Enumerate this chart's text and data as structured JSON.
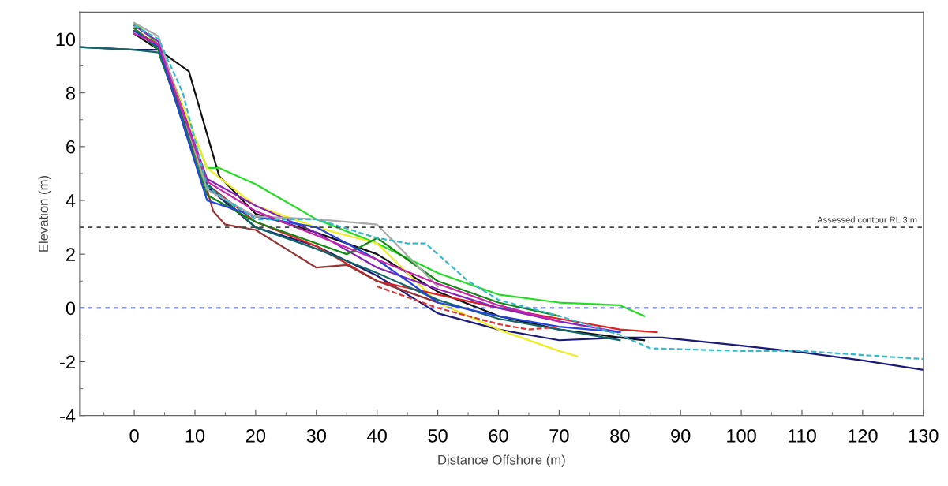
{
  "chart_data": {
    "type": "line",
    "xlabel": "Distance Offshore (m)",
    "ylabel": "Elevation (m)",
    "xlim": [
      -9,
      130
    ],
    "ylim": [
      -4,
      11
    ],
    "xticks": [
      0,
      10,
      20,
      30,
      40,
      50,
      60,
      70,
      80,
      90,
      100,
      110,
      120,
      130
    ],
    "yticks": [
      -4,
      -2,
      0,
      2,
      4,
      6,
      8,
      10
    ],
    "grid": false,
    "marker": "none",
    "line_style": "solid",
    "ref_lines": [
      {
        "axis": "y",
        "value": 3,
        "label": "Assessed contour RL 3 m",
        "color": "#444444",
        "line_style": "dashed"
      },
      {
        "axis": "y",
        "value": 0,
        "label": null,
        "color": "#3344aa",
        "line_style": "dashed"
      }
    ],
    "series": [
      {
        "color": "#1a1a7a",
        "x": [
          -9,
          0,
          4,
          12,
          20,
          30,
          40,
          50,
          60,
          70,
          80,
          87,
          100,
          110,
          120,
          130
        ],
        "values": [
          9.7,
          9.6,
          9.6,
          4.5,
          3.0,
          2.3,
          1.2,
          -0.2,
          -0.8,
          -1.2,
          -1.1,
          -1.1,
          -1.4,
          -1.65,
          -1.95,
          -2.3
        ]
      },
      {
        "color": "#33bbcc",
        "line_style": "dashed",
        "x": [
          0,
          4,
          8,
          12,
          20,
          30,
          40,
          45,
          48,
          50,
          55,
          60,
          70,
          80,
          85,
          100,
          110,
          130
        ],
        "values": [
          10.5,
          10,
          8,
          4.5,
          3.3,
          3.3,
          2.6,
          2.4,
          2.4,
          2.0,
          1.0,
          0.3,
          -0.3,
          -1.0,
          -1.5,
          -1.6,
          -1.6,
          -1.9
        ]
      },
      {
        "color": "#111111",
        "x": [
          0,
          4,
          9,
          14,
          20,
          30,
          40,
          50,
          60,
          70,
          80,
          84
        ],
        "values": [
          10.2,
          9.6,
          8.8,
          4.9,
          3.5,
          2.8,
          2.0,
          0.6,
          -0.3,
          -0.8,
          -1.1,
          -1.2
        ]
      },
      {
        "color": "#22dd22",
        "x": [
          0,
          4,
          12,
          14,
          20,
          30,
          40,
          50,
          60,
          70,
          80,
          84
        ],
        "values": [
          10.6,
          9.8,
          5.2,
          5.2,
          4.6,
          3.3,
          2.4,
          1.3,
          0.5,
          0.2,
          0.1,
          -0.3
        ]
      },
      {
        "color": "#eeee22",
        "x": [
          0,
          4,
          12,
          20,
          30,
          40,
          50,
          60,
          70,
          73
        ],
        "values": [
          10.3,
          9.8,
          5.2,
          3.8,
          3.0,
          2.4,
          0.2,
          -0.8,
          -1.6,
          -1.8
        ]
      },
      {
        "color": "#dd2222",
        "x": [
          0,
          4,
          12,
          20,
          30,
          40,
          50,
          60,
          70,
          80,
          86
        ],
        "values": [
          10.4,
          9.7,
          4.6,
          3.2,
          2.3,
          1.0,
          0.5,
          0.0,
          -0.4,
          -0.8,
          -0.9
        ]
      },
      {
        "color": "#8822bb",
        "x": [
          0,
          4,
          12,
          20,
          30,
          40,
          50,
          60,
          70,
          80
        ],
        "values": [
          10.5,
          9.9,
          4.8,
          3.8,
          2.8,
          1.5,
          0.7,
          0.0,
          -0.5,
          -0.9
        ]
      },
      {
        "color": "#993333",
        "x": [
          0,
          4,
          12,
          13,
          15,
          20,
          25,
          30,
          35,
          40,
          50
        ],
        "values": [
          10.3,
          9.8,
          4.4,
          3.6,
          3.1,
          2.9,
          2.2,
          1.5,
          1.6,
          1.0,
          0.2
        ]
      },
      {
        "color": "#116666",
        "x": [
          -9,
          0,
          4,
          12,
          20,
          30,
          40,
          50,
          60,
          70,
          80
        ],
        "values": [
          9.7,
          9.6,
          9.5,
          4.6,
          3.0,
          2.2,
          1.3,
          0.3,
          -0.4,
          -0.8,
          -1.2
        ]
      },
      {
        "color": "#118811",
        "x": [
          0,
          4,
          12,
          20,
          30,
          35,
          40,
          50,
          60,
          70
        ],
        "values": [
          10.4,
          9.6,
          4.2,
          3.2,
          2.4,
          2.0,
          2.6,
          1.0,
          0.2,
          -0.3
        ]
      },
      {
        "color": "#2244dd",
        "x": [
          0,
          4,
          12,
          20,
          30,
          40,
          50,
          60,
          70,
          80
        ],
        "values": [
          10.3,
          9.7,
          4.0,
          3.4,
          3.0,
          1.8,
          0.2,
          -0.3,
          -0.7,
          -0.9
        ]
      },
      {
        "color": "#aaaaaa",
        "x": [
          0,
          4,
          12,
          20,
          30,
          40,
          50
        ],
        "values": [
          10.6,
          10.1,
          4.4,
          3.4,
          3.3,
          3.1,
          0.8
        ]
      },
      {
        "color": "#dd3333",
        "line_style": "dashed",
        "x": [
          40,
          50,
          60,
          65,
          70
        ],
        "values": [
          0.8,
          0.0,
          -0.6,
          -0.8,
          -0.7
        ]
      },
      {
        "color": "#cc22aa",
        "x": [
          0,
          4,
          12,
          20,
          30,
          40,
          50,
          60,
          70
        ],
        "values": [
          10.2,
          9.8,
          4.7,
          3.6,
          2.7,
          1.8,
          0.9,
          0.1,
          -0.5
        ]
      }
    ]
  }
}
